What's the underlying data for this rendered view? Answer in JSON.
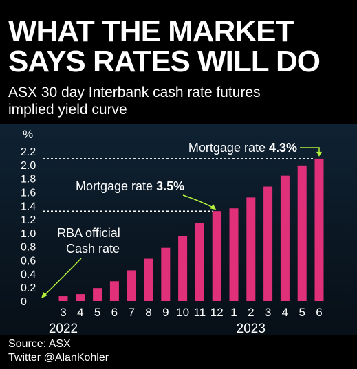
{
  "header": {
    "title_line1": "WHAT THE MARKET",
    "title_line2": "SAYS RATES WILL DO",
    "subtitle_line1": "ASX 30 day Interbank cash rate futures",
    "subtitle_line2": "implied yield curve"
  },
  "footer": {
    "source": "Source: ASX",
    "twitter": "Twitter @AlanKohler"
  },
  "colors": {
    "bar": "#e0307a",
    "annotation_arrow": "#b4f03c",
    "background": "#0b1622",
    "text": "#ffffff"
  },
  "chart_data": {
    "type": "bar",
    "ylabel": "%",
    "ylim": [
      0,
      2.2
    ],
    "yticks": [
      "0",
      "0.2",
      "0.4",
      "0.6",
      "0.8",
      "1.0",
      "1.2",
      "1.4",
      "1.6",
      "1.8",
      "2.0",
      "2.2"
    ],
    "categories": [
      "3",
      "4",
      "5",
      "6",
      "7",
      "8",
      "9",
      "10",
      "11",
      "12",
      "1",
      "2",
      "3",
      "4",
      "5",
      "6"
    ],
    "year_labels": [
      {
        "text": "2022",
        "at_index": 0
      },
      {
        "text": "2023",
        "at_index": 11
      }
    ],
    "values": [
      0.07,
      0.1,
      0.19,
      0.29,
      0.45,
      0.62,
      0.78,
      0.95,
      1.15,
      1.32,
      1.36,
      1.52,
      1.68,
      1.84,
      1.99,
      2.09
    ],
    "grid": false,
    "annotations": [
      {
        "id": "mortgage_35",
        "prefix": "Mortgage rate ",
        "value": "3.5%",
        "target_index": 9
      },
      {
        "id": "mortgage_43",
        "prefix": "Mortgage rate ",
        "value": "4.3%",
        "target_index": 15
      },
      {
        "id": "rba",
        "line1": "RBA official",
        "line2": "Cash rate",
        "target_value": 0
      }
    ]
  }
}
